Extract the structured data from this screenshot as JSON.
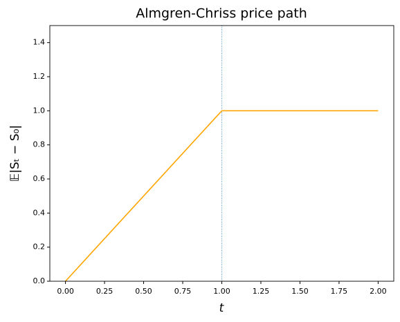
{
  "chart_data": {
    "type": "line",
    "title": "Almgren-Chriss price path",
    "xlabel": "t",
    "ylabel": "𝔼|Sₜ − S₀|",
    "x": [
      0,
      1,
      2
    ],
    "series": [
      {
        "color": "#ffa500",
        "values": [
          0,
          1,
          1
        ]
      }
    ],
    "vline": 1,
    "vline_color": "#1f77b4",
    "xlim": [
      -0.1,
      2.1
    ],
    "ylim": [
      0,
      1.5
    ],
    "xticks": [
      {
        "value": 0,
        "label": "0.00"
      },
      {
        "value": 0.25,
        "label": "0.25"
      },
      {
        "value": 0.5,
        "label": "0.50"
      },
      {
        "value": 0.75,
        "label": "0.75"
      },
      {
        "value": 1,
        "label": "1.00"
      },
      {
        "value": 1.25,
        "label": "1.25"
      },
      {
        "value": 1.5,
        "label": "1.50"
      },
      {
        "value": 1.75,
        "label": "1.75"
      },
      {
        "value": 2,
        "label": "2.00"
      }
    ],
    "yticks": [
      {
        "value": 0,
        "label": "0.0"
      },
      {
        "value": 0.2,
        "label": "0.2"
      },
      {
        "value": 0.4,
        "label": "0.4"
      },
      {
        "value": 0.6,
        "label": "0.6"
      },
      {
        "value": 0.8,
        "label": "0.8"
      },
      {
        "value": 1,
        "label": "1.0"
      },
      {
        "value": 1.2,
        "label": "1.2"
      },
      {
        "value": 1.4,
        "label": "1.4"
      }
    ],
    "grid": false
  }
}
